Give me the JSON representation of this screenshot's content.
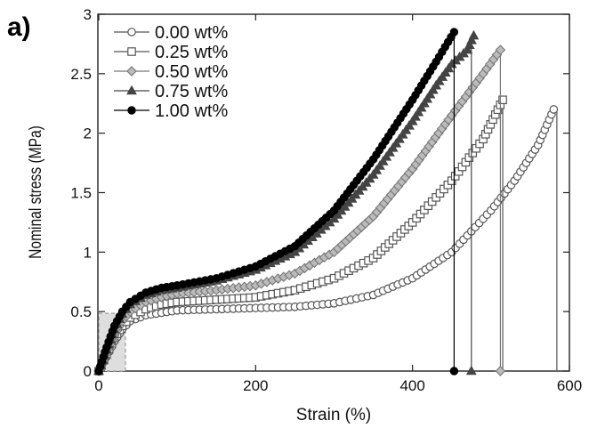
{
  "panel_label": "a)",
  "chart_data": {
    "type": "scatter",
    "title": "",
    "xlabel": "Strain (%)",
    "ylabel": "Nominal stress (MPa)",
    "xlim": [
      0,
      600
    ],
    "ylim": [
      0,
      3
    ],
    "xticks": [
      0,
      200,
      400,
      600
    ],
    "xtick_labels": [
      "0",
      "200",
      "400",
      "600"
    ],
    "yticks": [
      0,
      0.5,
      1,
      1.5,
      2,
      2.5,
      3
    ],
    "ytick_labels": [
      "0",
      "0.5",
      "1",
      "1.5",
      "2",
      "2.5",
      "3"
    ],
    "grid": false,
    "legend_position": "top-left",
    "marker_stroke_color": "#555555",
    "series": [
      {
        "name": "0.00 wt%",
        "marker": "circle-open",
        "color": "#555555",
        "points": [
          [
            0,
            0
          ],
          [
            10,
            0.12
          ],
          [
            20,
            0.25
          ],
          [
            30,
            0.35
          ],
          [
            40,
            0.42
          ],
          [
            60,
            0.47
          ],
          [
            80,
            0.49
          ],
          [
            100,
            0.51
          ],
          [
            150,
            0.52
          ],
          [
            200,
            0.53
          ],
          [
            250,
            0.54
          ],
          [
            300,
            0.57
          ],
          [
            350,
            0.64
          ],
          [
            400,
            0.78
          ],
          [
            450,
            1.0
          ],
          [
            500,
            1.35
          ],
          [
            530,
            1.6
          ],
          [
            560,
            1.9
          ],
          [
            580,
            2.2
          ]
        ],
        "break": {
          "x": 584,
          "y": 2.2,
          "end_y": 0,
          "end_marker": false
        }
      },
      {
        "name": "0.25 wt%",
        "marker": "square-open",
        "color": "#555555",
        "points": [
          [
            0,
            0
          ],
          [
            10,
            0.14
          ],
          [
            20,
            0.28
          ],
          [
            30,
            0.38
          ],
          [
            40,
            0.45
          ],
          [
            60,
            0.52
          ],
          [
            80,
            0.56
          ],
          [
            100,
            0.58
          ],
          [
            150,
            0.6
          ],
          [
            200,
            0.62
          ],
          [
            250,
            0.68
          ],
          [
            300,
            0.78
          ],
          [
            350,
            0.95
          ],
          [
            400,
            1.25
          ],
          [
            450,
            1.6
          ],
          [
            490,
            1.95
          ],
          [
            515,
            2.28
          ]
        ],
        "break": {
          "x": 515,
          "y": 2.28,
          "end_y": 0,
          "end_marker": false
        }
      },
      {
        "name": "0.50 wt%",
        "marker": "diamond-open",
        "color": "#777777",
        "points": [
          [
            0,
            0
          ],
          [
            10,
            0.15
          ],
          [
            20,
            0.3
          ],
          [
            30,
            0.42
          ],
          [
            40,
            0.5
          ],
          [
            60,
            0.58
          ],
          [
            80,
            0.62
          ],
          [
            100,
            0.65
          ],
          [
            150,
            0.68
          ],
          [
            200,
            0.72
          ],
          [
            250,
            0.82
          ],
          [
            300,
            1.0
          ],
          [
            350,
            1.3
          ],
          [
            400,
            1.7
          ],
          [
            450,
            2.15
          ],
          [
            490,
            2.5
          ],
          [
            512,
            2.7
          ]
        ],
        "break": {
          "x": 512,
          "y": 2.7,
          "end_y": 0,
          "end_marker": true
        }
      },
      {
        "name": "0.75 wt%",
        "marker": "triangle-filled",
        "color": "#444444",
        "points": [
          [
            0,
            0
          ],
          [
            10,
            0.18
          ],
          [
            20,
            0.35
          ],
          [
            30,
            0.48
          ],
          [
            40,
            0.56
          ],
          [
            60,
            0.64
          ],
          [
            80,
            0.68
          ],
          [
            100,
            0.7
          ],
          [
            150,
            0.76
          ],
          [
            200,
            0.85
          ],
          [
            250,
            1.0
          ],
          [
            300,
            1.28
          ],
          [
            350,
            1.65
          ],
          [
            400,
            2.1
          ],
          [
            430,
            2.4
          ],
          [
            450,
            2.58
          ],
          [
            470,
            2.7
          ],
          [
            478,
            2.82
          ]
        ],
        "break": {
          "x": 475,
          "y": 2.82,
          "end_y": 0,
          "end_marker": true
        }
      },
      {
        "name": "1.00 wt%",
        "marker": "circle-filled",
        "color": "#000000",
        "points": [
          [
            0,
            0
          ],
          [
            10,
            0.2
          ],
          [
            20,
            0.38
          ],
          [
            30,
            0.5
          ],
          [
            40,
            0.58
          ],
          [
            60,
            0.66
          ],
          [
            80,
            0.7
          ],
          [
            100,
            0.72
          ],
          [
            150,
            0.78
          ],
          [
            200,
            0.88
          ],
          [
            250,
            1.05
          ],
          [
            300,
            1.35
          ],
          [
            350,
            1.78
          ],
          [
            400,
            2.28
          ],
          [
            430,
            2.6
          ],
          [
            453,
            2.85
          ]
        ],
        "break": {
          "x": 453,
          "y": 2.85,
          "end_y": 0,
          "end_marker": true
        }
      }
    ]
  }
}
